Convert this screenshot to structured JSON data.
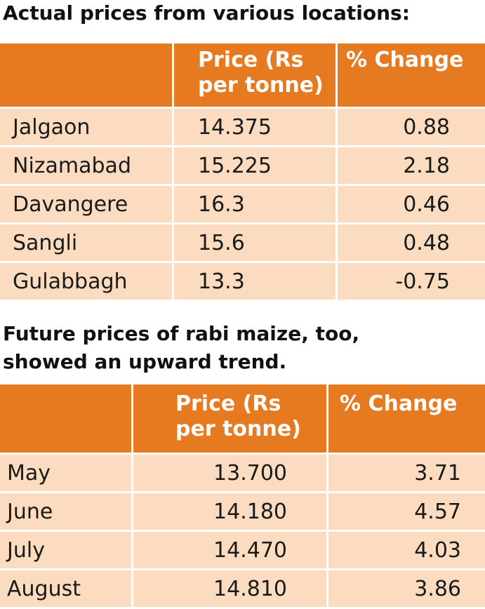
{
  "actual": {
    "title": "Actual prices from various locations:",
    "headers": {
      "location": "",
      "price": "Price (Rs per tonne)",
      "change": "% Change"
    },
    "rows": [
      {
        "location": "Jalgaon",
        "price": "14.375",
        "change": "0.88"
      },
      {
        "location": "Nizamabad",
        "price": "15.225",
        "change": "2.18"
      },
      {
        "location": "Davangere",
        "price": "16.3",
        "change": "0.46"
      },
      {
        "location": "Sangli",
        "price": "15.6",
        "change": "0.48"
      },
      {
        "location": "Gulabbagh",
        "price": "13.3",
        "change": "-0.75"
      }
    ]
  },
  "future": {
    "title": "Future prices of rabi maize, too, showed an upward trend.",
    "headers": {
      "month": "",
      "price": "Price (Rs per tonne)",
      "change": "% Change"
    },
    "rows": [
      {
        "month": "May",
        "price": "13.700",
        "change": "3.71"
      },
      {
        "month": "June",
        "price": "14.180",
        "change": "4.57"
      },
      {
        "month": "July",
        "price": "14.470",
        "change": "4.03"
      },
      {
        "month": "August",
        "price": "14.810",
        "change": "3.86"
      }
    ]
  },
  "colors": {
    "header_bg": "#e57a20",
    "row_bg": "#fbdcc0",
    "header_text": "#ffffff"
  }
}
